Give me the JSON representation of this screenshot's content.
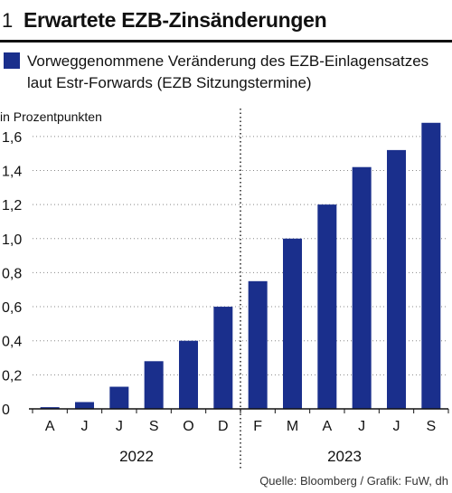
{
  "figure": {
    "number": "1",
    "title": "Erwartete EZB-Zinsänderungen"
  },
  "legend": {
    "label": "Vorweggenommene Veränderung des EZB-Einlagensatzes laut Estr-Forwards (EZB Sitzungstermine)",
    "color": "#1a2f8c"
  },
  "source": "Quelle: Bloomberg / Grafik: FuW, dh",
  "chart_data": {
    "type": "bar",
    "ylabel": "in Prozentpunkten",
    "ylim": [
      0,
      1.7
    ],
    "yticks": [
      "0",
      "0,2",
      "0,4",
      "0,6",
      "0,8",
      "1,0",
      "1,2",
      "1,4",
      "1,6"
    ],
    "categories": [
      "A",
      "J",
      "J",
      "S",
      "O",
      "D",
      "F",
      "M",
      "A",
      "J",
      "J",
      "S"
    ],
    "groups": [
      {
        "label": "2022",
        "count": 6
      },
      {
        "label": "2023",
        "count": 6
      }
    ],
    "values": [
      0.01,
      0.04,
      0.13,
      0.28,
      0.4,
      0.6,
      0.75,
      1.0,
      1.2,
      1.42,
      1.52,
      1.68
    ],
    "bar_color": "#1a2f8c",
    "grid": "horizontal dotted"
  }
}
